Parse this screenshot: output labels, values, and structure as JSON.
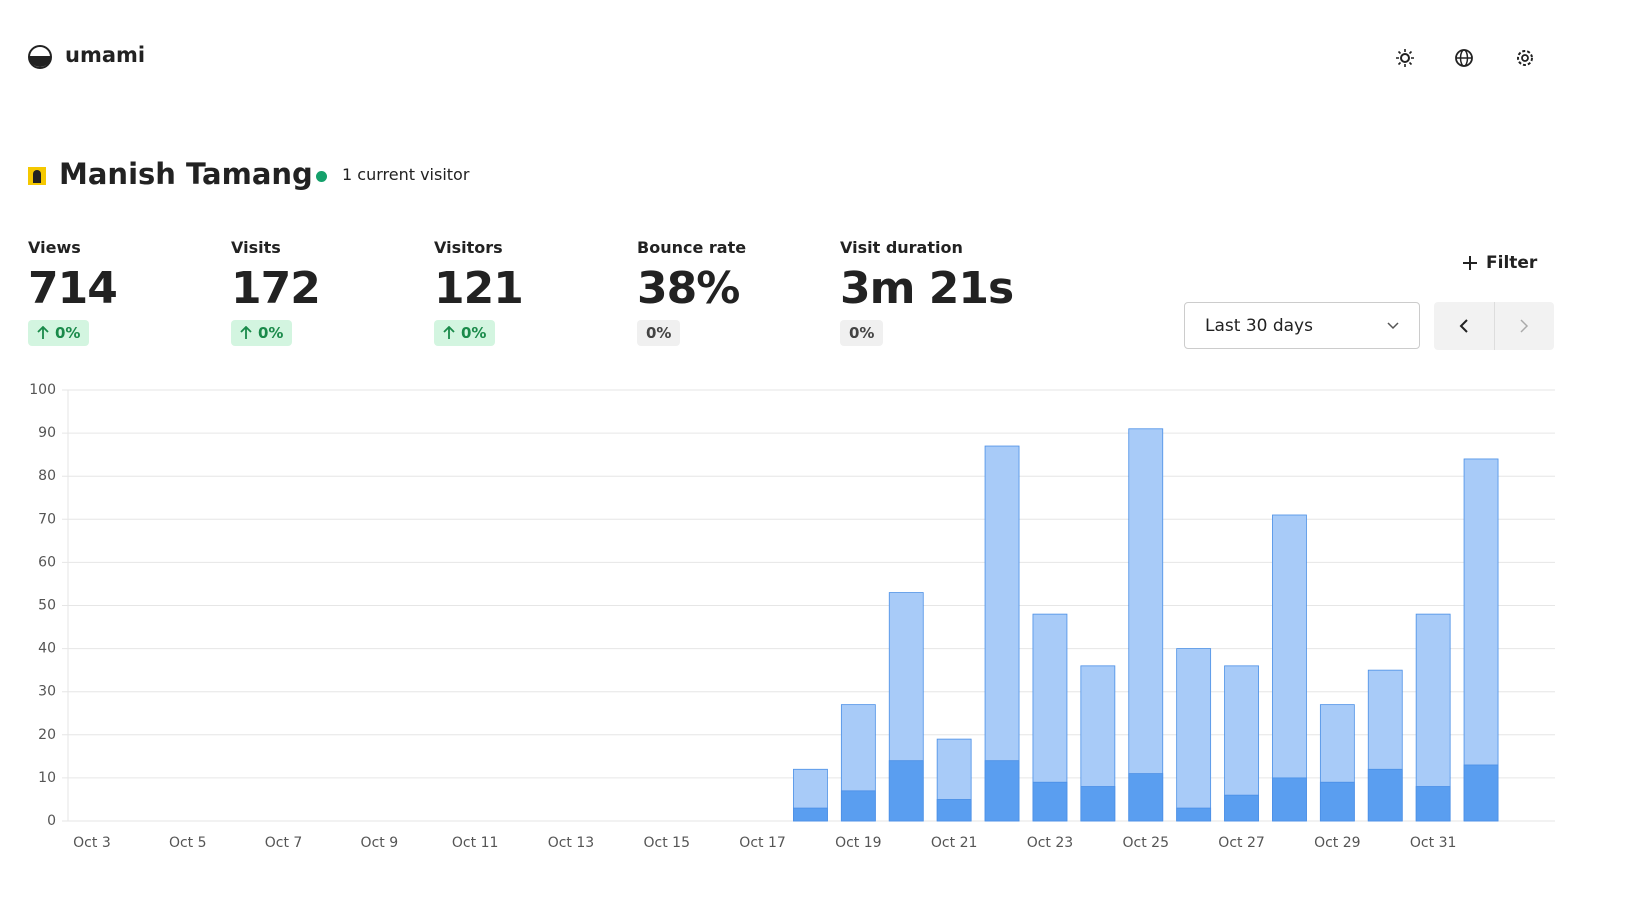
{
  "header": {
    "brand": "umami"
  },
  "website": {
    "name": "Manish Tamang",
    "active": "1 current visitor"
  },
  "metrics": [
    {
      "label": "Views",
      "value": "714",
      "change": "0%"
    },
    {
      "label": "Visits",
      "value": "172",
      "change": "0%"
    },
    {
      "label": "Visitors",
      "value": "121",
      "change": "0%"
    },
    {
      "label": "Bounce rate",
      "value": "38%",
      "change": "0%"
    },
    {
      "label": "Visit duration",
      "value": "3m 21s",
      "change": "0%"
    }
  ],
  "controls": {
    "filter": "Filter",
    "range": "Last 30 days"
  },
  "chart_data": {
    "type": "bar",
    "categories": [
      "Oct 3",
      null,
      "Oct 5",
      null,
      "Oct 7",
      null,
      "Oct 9",
      null,
      "Oct 11",
      null,
      "Oct 13",
      null,
      "Oct 15",
      null,
      "Oct 17",
      null,
      "Oct 19",
      null,
      "Oct 21",
      null,
      "Oct 23",
      null,
      "Oct 25",
      null,
      "Oct 27",
      null,
      "Oct 29",
      null,
      "Oct 31",
      null
    ],
    "series": [
      {
        "color": "#a8cbf8",
        "values": [
          0,
          0,
          0,
          0,
          0,
          0,
          0,
          0,
          0,
          0,
          0,
          0,
          0,
          0,
          0,
          12,
          27,
          53,
          19,
          87,
          48,
          36,
          91,
          40,
          36,
          71,
          27,
          35,
          48,
          84
        ]
      },
      {
        "color": "#5a9ef0",
        "values": [
          0,
          0,
          0,
          0,
          0,
          0,
          0,
          0,
          0,
          0,
          0,
          0,
          0,
          0,
          0,
          3,
          7,
          14,
          5,
          14,
          9,
          8,
          11,
          3,
          6,
          10,
          9,
          12,
          8,
          13
        ]
      }
    ],
    "ylim": [
      0,
      100
    ],
    "yticks": [
      0,
      10,
      20,
      30,
      40,
      50,
      60,
      70,
      80,
      90,
      100
    ],
    "grid": true
  }
}
